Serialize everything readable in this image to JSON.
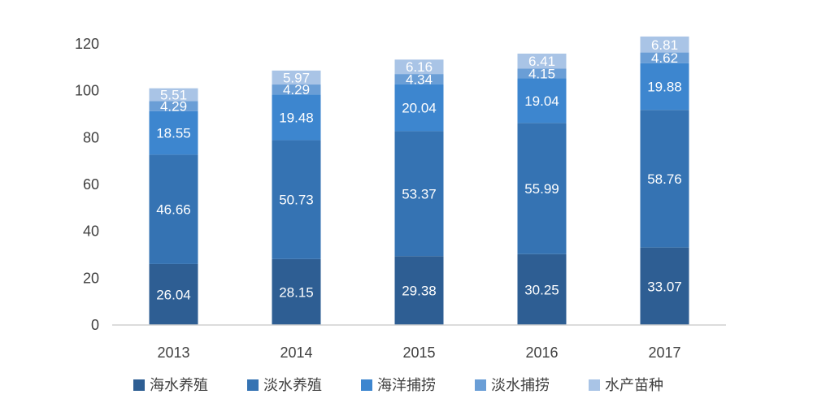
{
  "chart_data": {
    "type": "bar",
    "stacked": true,
    "categories": [
      "2013",
      "2014",
      "2015",
      "2016",
      "2017"
    ],
    "series": [
      {
        "name": "海水养殖",
        "color": "#2e5e93",
        "values": [
          26.04,
          28.15,
          29.38,
          30.25,
          33.07
        ]
      },
      {
        "name": "淡水养殖",
        "color": "#3573b3",
        "values": [
          46.66,
          50.73,
          53.37,
          55.99,
          58.76
        ]
      },
      {
        "name": "海洋捕捞",
        "color": "#3d86cf",
        "values": [
          18.55,
          19.48,
          20.04,
          19.04,
          19.88
        ]
      },
      {
        "name": "淡水捕捞",
        "color": "#6a9ed6",
        "values": [
          4.29,
          4.29,
          4.34,
          4.15,
          4.62
        ]
      },
      {
        "name": "水产苗种",
        "color": "#a9c4e6",
        "values": [
          5.51,
          5.97,
          6.16,
          6.41,
          6.81
        ]
      }
    ],
    "title": "",
    "xlabel": "",
    "ylabel": "",
    "ylim": [
      0,
      120
    ],
    "yticks": [
      0,
      20,
      40,
      60,
      80,
      100,
      120
    ],
    "grid": false,
    "legend": "bottom"
  }
}
